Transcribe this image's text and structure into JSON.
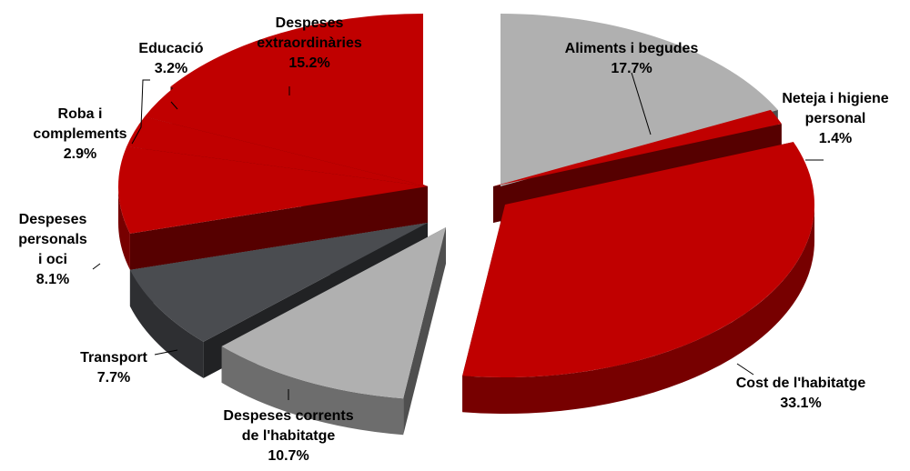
{
  "chart_data": {
    "type": "pie",
    "title": "",
    "legend": "none",
    "slices": [
      {
        "label": "Aliments i begudes",
        "value": 17.7,
        "value_label": "17.7%",
        "color": "#b0b0b0"
      },
      {
        "label": "Neteja i higiene personal",
        "value": 1.4,
        "value_label": "1.4%",
        "color": "#c00000"
      },
      {
        "label": "Cost de l'habitatge",
        "value": 33.1,
        "value_label": "33.1%",
        "color": "#c00000"
      },
      {
        "label": "Despeses corrents de l'habitatge",
        "value": 10.7,
        "value_label": "10.7%",
        "color": "#b0b0b0"
      },
      {
        "label": "Transport",
        "value": 7.7,
        "value_label": "7.7%",
        "color": "#4a4c50"
      },
      {
        "label": "Despeses personals i oci",
        "value": 8.1,
        "value_label": "8.1%",
        "color": "#c00000"
      },
      {
        "label": "Roba i complements",
        "value": 2.9,
        "value_label": "2.9%",
        "color": "#c00000"
      },
      {
        "label": "Educació",
        "value": 3.2,
        "value_label": "3.2%",
        "color": "#c00000"
      },
      {
        "label": "Despeses extraordinàries",
        "value": 15.2,
        "value_label": "15.2%",
        "color": "#c00000"
      }
    ]
  }
}
